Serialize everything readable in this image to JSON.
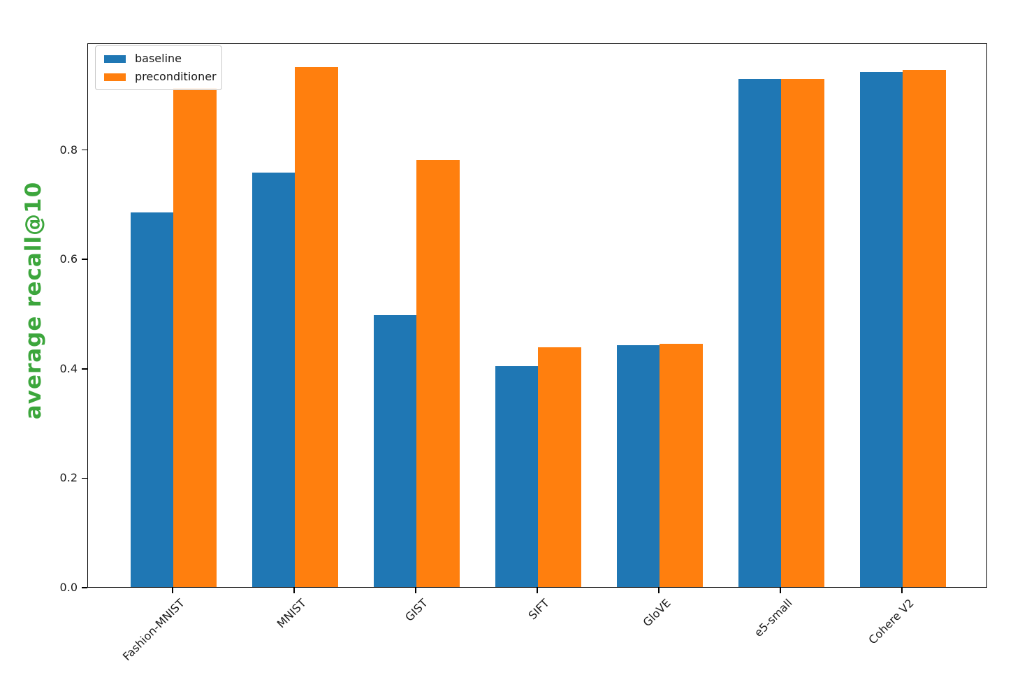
{
  "figure": {
    "background": "#ffffff",
    "spine_color": "#000000",
    "tick_label_color": "#1a1a1a"
  },
  "chart_data": {
    "type": "bar",
    "title": "",
    "xlabel": "",
    "ylabel": "average recall@10",
    "ylabel_color": "#3ca63c",
    "categories": [
      "Fashion-MNIST",
      "MNIST",
      "GIST",
      "SIFT",
      "GloVE",
      "e5-small",
      "Cohere V2"
    ],
    "series": [
      {
        "name": "baseline",
        "color": "#1f77b4",
        "values": [
          0.685,
          0.758,
          0.497,
          0.403,
          0.442,
          0.929,
          0.941
        ]
      },
      {
        "name": "preconditioner",
        "color": "#ff7f0e",
        "values": [
          0.912,
          0.95,
          0.78,
          0.438,
          0.445,
          0.929,
          0.945
        ]
      }
    ],
    "yticks": [
      0.0,
      0.2,
      0.4,
      0.6,
      0.8
    ],
    "ytick_labels": [
      "0.0",
      "0.2",
      "0.4",
      "0.6",
      "0.8"
    ],
    "ylim": [
      0,
      0.995
    ],
    "xtick_rotation_deg": 45,
    "grid": false,
    "legend": {
      "position": "upper left",
      "labels": [
        "baseline",
        "preconditioner"
      ]
    }
  }
}
